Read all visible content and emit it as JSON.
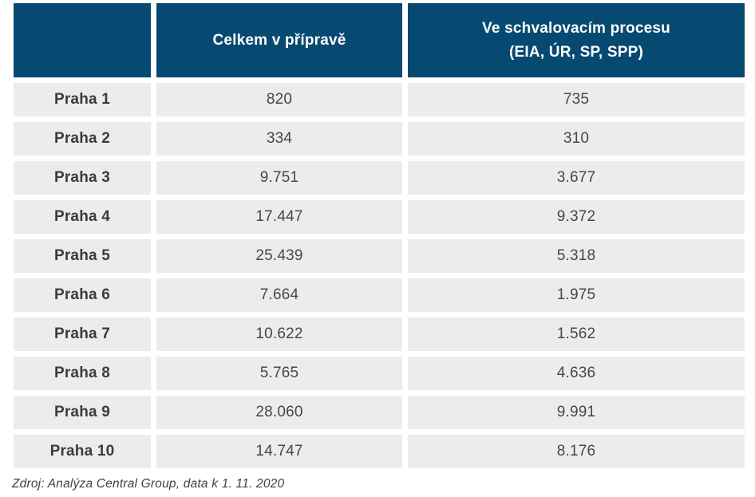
{
  "table": {
    "header": {
      "col1": "",
      "col2": "Celkem v přípravě",
      "col3_line1": "Ve schvalovacím procesu",
      "col3_line2": "(EIA, ÚR, SP, SPP)"
    },
    "rows": [
      {
        "district": "Praha 1",
        "total": "820",
        "approval": "735"
      },
      {
        "district": "Praha 2",
        "total": "334",
        "approval": "310"
      },
      {
        "district": "Praha 3",
        "total": "9.751",
        "approval": "3.677"
      },
      {
        "district": "Praha 4",
        "total": "17.447",
        "approval": "9.372"
      },
      {
        "district": "Praha 5",
        "total": "25.439",
        "approval": "5.318"
      },
      {
        "district": "Praha 6",
        "total": "7.664",
        "approval": "1.975"
      },
      {
        "district": "Praha 7",
        "total": "10.622",
        "approval": "1.562"
      },
      {
        "district": "Praha 8",
        "total": "5.765",
        "approval": "4.636"
      },
      {
        "district": "Praha 9",
        "total": "28.060",
        "approval": "9.991"
      },
      {
        "district": "Praha 10",
        "total": "14.747",
        "approval": "8.176"
      }
    ]
  },
  "footer": {
    "source": "Zdroj: Analýza Central Group, data k 1. 11. 2020"
  },
  "colors": {
    "header_bg": "#074a71",
    "header_text": "#ffffff",
    "row_bg": "#ececec",
    "row_text": "#3f3f3f",
    "page_bg": "#ffffff"
  },
  "chart_data": {
    "type": "table",
    "title": "",
    "columns": [
      "",
      "Celkem v přípravě",
      "Ve schvalovacím procesu (EIA, ÚR, SP, SPP)"
    ],
    "rows": [
      [
        "Praha 1",
        820,
        735
      ],
      [
        "Praha 2",
        334,
        310
      ],
      [
        "Praha 3",
        9751,
        3677
      ],
      [
        "Praha 4",
        17447,
        9372
      ],
      [
        "Praha 5",
        25439,
        5318
      ],
      [
        "Praha 6",
        7664,
        1975
      ],
      [
        "Praha 7",
        10622,
        1562
      ],
      [
        "Praha 8",
        5765,
        4636
      ],
      [
        "Praha 9",
        28060,
        9991
      ],
      [
        "Praha 10",
        14747,
        8176
      ]
    ],
    "number_format": "dot thousands separator",
    "source": "Zdroj: Analýza Central Group, data k 1. 11. 2020"
  }
}
